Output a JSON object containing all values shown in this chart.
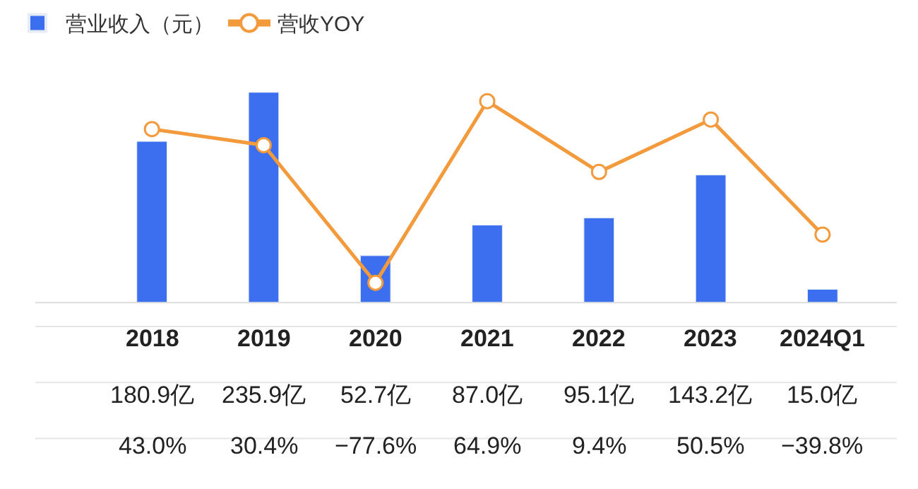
{
  "chart_data": {
    "type": "bar",
    "categories": [
      "2018",
      "2019",
      "2020",
      "2021",
      "2022",
      "2023",
      "2024Q1"
    ],
    "legend": "top left",
    "tick_labels": false,
    "marker": "circle",
    "series": [
      {
        "name": "营业收入（元）",
        "color": "#3b6ff0",
        "values": [
          180.9,
          235.9,
          52.7,
          87.0,
          95.1,
          143.2,
          15.0
        ],
        "value_labels": [
          "180.9亿",
          "235.9亿",
          "52.7亿",
          "87.0亿",
          "95.1亿",
          "143.2亿",
          "15.0亿"
        ]
      },
      {
        "name": "营收YOY",
        "type": "line",
        "axis": "y2",
        "color": "#f39a3c",
        "values": [
          43.0,
          30.4,
          -77.6,
          64.9,
          9.4,
          50.5,
          -39.8
        ],
        "value_labels": [
          "43.0%",
          "30.4%",
          "−77.6%",
          "64.9%",
          "9.4%",
          "50.5%",
          "−39.8%"
        ]
      }
    ]
  }
}
